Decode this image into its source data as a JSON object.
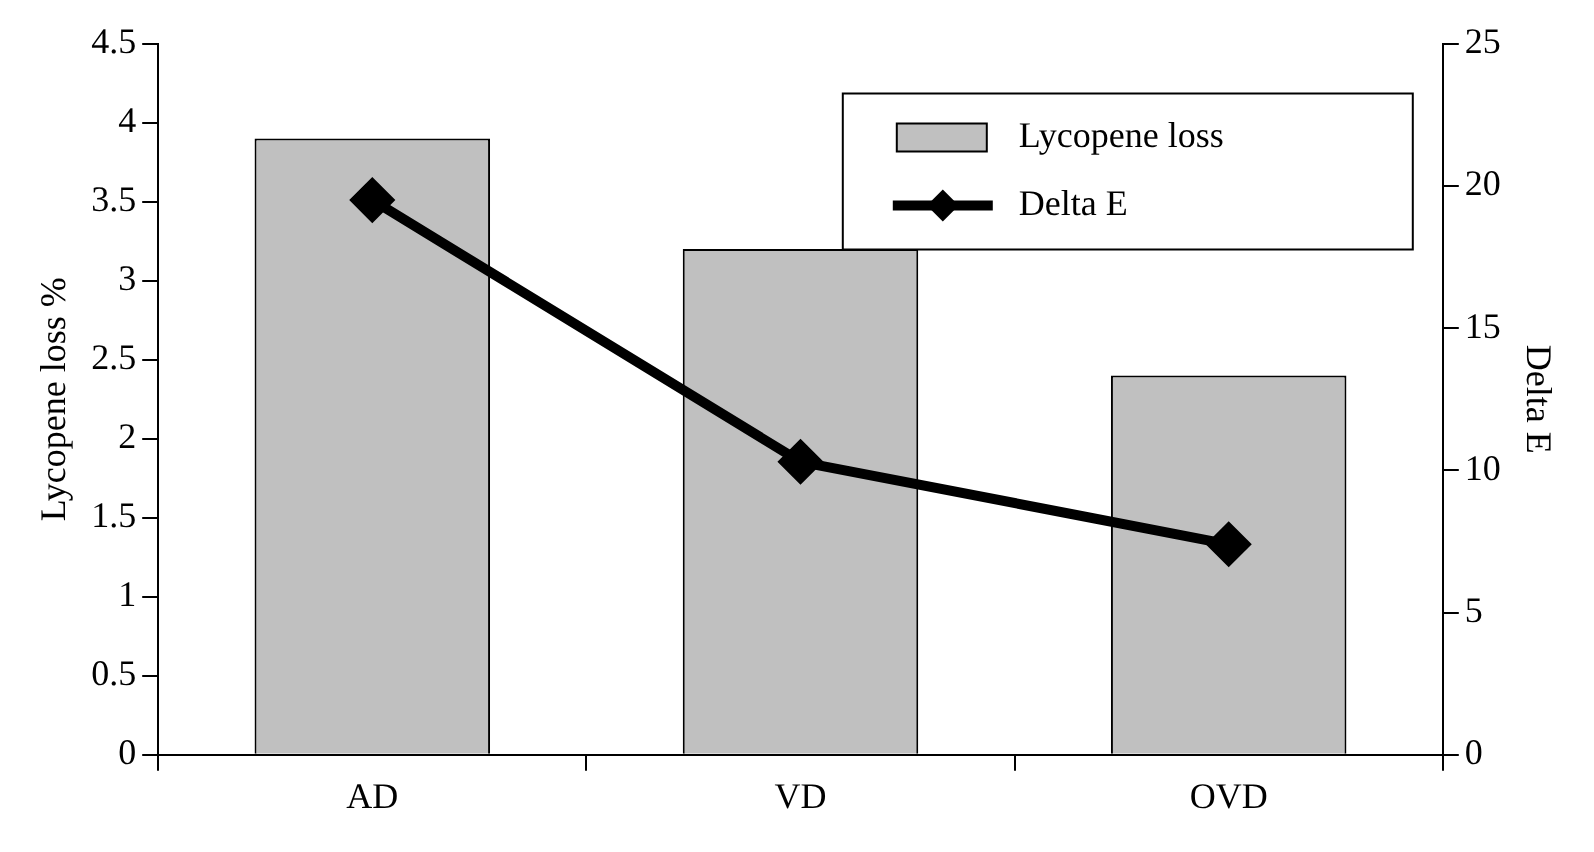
{
  "chart_data": {
    "type": "bar",
    "ylabel": "Lycopene loss %",
    "y2label": "Delta E",
    "categories": [
      "AD",
      "VD",
      "OVD"
    ],
    "series": [
      {
        "name": "Lycopene loss",
        "color": "#c0c0c0",
        "values": [
          3.9,
          3.2,
          2.4
        ]
      },
      {
        "name": "Delta E",
        "type": "line",
        "axis": "y2",
        "color": "#000000",
        "values": [
          19.5,
          10.3,
          7.4
        ]
      }
    ],
    "ylim": [
      0,
      4.5
    ],
    "yticks": [
      0,
      0.5,
      1,
      1.5,
      2,
      2.5,
      3,
      3.5,
      4,
      4.5
    ],
    "y2lim": [
      0,
      25
    ],
    "y2ticks": [
      0,
      5,
      10,
      15,
      20,
      25
    ],
    "legend": "top right",
    "marker": "diamond",
    "line_style": "solid"
  }
}
